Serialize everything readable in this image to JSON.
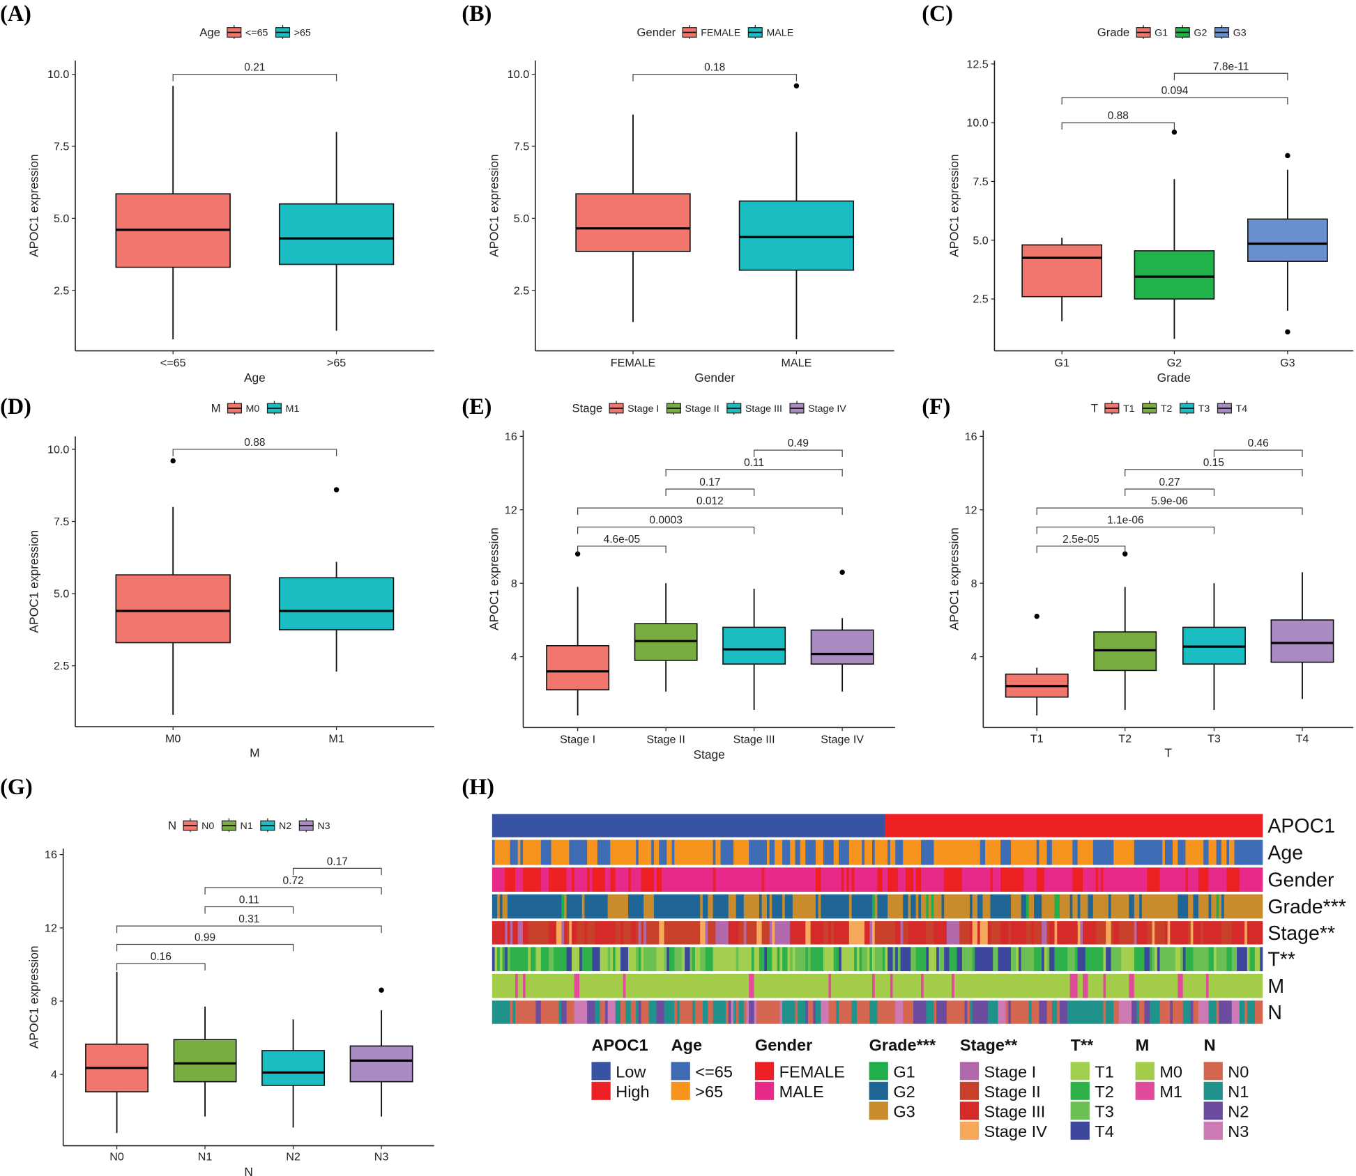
{
  "panel_labels": [
    "(A)",
    "(B)",
    "(C)",
    "(D)",
    "(E)",
    "(F)",
    "(G)",
    "(H)"
  ],
  "chart_data": [
    {
      "type": "boxplot",
      "id": "A",
      "ylabel": "APOC1  expression",
      "xlabel": "Age",
      "legend_title": "Age",
      "yticks": [
        2.5,
        5.0,
        7.5,
        10.0
      ],
      "ytick_labels": [
        "2.5",
        "5.0",
        "7.5",
        "10.0"
      ],
      "groups": [
        {
          "name": "<=65",
          "color": "#f1766e",
          "whisker_low": 0.8,
          "q1": 3.3,
          "median": 4.6,
          "q3": 5.85,
          "whisker_high": 9.6,
          "outliers": []
        },
        {
          "name": ">65",
          "color": "#1cbdc2",
          "whisker_low": 1.1,
          "q1": 3.4,
          "median": 4.3,
          "q3": 5.5,
          "whisker_high": 8.0,
          "outliers": []
        }
      ],
      "comparisons": [
        {
          "from": 0,
          "to": 1,
          "p": "0.21",
          "y": 10.0
        }
      ]
    },
    {
      "type": "boxplot",
      "id": "B",
      "ylabel": "APOC1  expression",
      "xlabel": "Gender",
      "legend_title": "Gender",
      "yticks": [
        2.5,
        5.0,
        7.5,
        10.0
      ],
      "ytick_labels": [
        "2.5",
        "5.0",
        "7.5",
        "10.0"
      ],
      "groups": [
        {
          "name": "FEMALE",
          "color": "#f1766e",
          "whisker_low": 1.4,
          "q1": 3.85,
          "median": 4.65,
          "q3": 5.85,
          "whisker_high": 8.6,
          "outliers": []
        },
        {
          "name": "MALE",
          "color": "#1cbdc2",
          "whisker_low": 0.8,
          "q1": 3.2,
          "median": 4.35,
          "q3": 5.6,
          "whisker_high": 8.0,
          "outliers": [
            9.6
          ]
        }
      ],
      "comparisons": [
        {
          "from": 0,
          "to": 1,
          "p": "0.18",
          "y": 10.0
        }
      ]
    },
    {
      "type": "boxplot",
      "id": "C",
      "ylabel": "APOC1  expression",
      "xlabel": "Grade",
      "legend_title": "Grade",
      "yticks": [
        2.5,
        5.0,
        7.5,
        10.0,
        12.5
      ],
      "ytick_labels": [
        "2.5",
        "5.0",
        "7.5",
        "10.0",
        "12.5"
      ],
      "groups": [
        {
          "name": "G1",
          "color": "#f1766e",
          "whisker_low": 1.55,
          "q1": 2.6,
          "median": 4.25,
          "q3": 4.8,
          "whisker_high": 5.1,
          "outliers": []
        },
        {
          "name": "G2",
          "color": "#22b24c",
          "whisker_low": 0.8,
          "q1": 2.5,
          "median": 3.45,
          "q3": 4.55,
          "whisker_high": 7.6,
          "outliers": [
            9.6
          ]
        },
        {
          "name": "G3",
          "color": "#6a8fcf",
          "whisker_low": 2.0,
          "q1": 4.1,
          "median": 4.85,
          "q3": 5.9,
          "whisker_high": 8.0,
          "outliers": [
            8.6,
            1.1
          ]
        }
      ],
      "comparisons": [
        {
          "from": 0,
          "to": 1,
          "p": "0.88",
          "y": 10.0
        },
        {
          "from": 0,
          "to": 2,
          "p": "0.094",
          "y": 11.07
        },
        {
          "from": 1,
          "to": 2,
          "p": "7.8e-11",
          "y": 12.1
        }
      ]
    },
    {
      "type": "boxplot",
      "id": "D",
      "ylabel": "APOC1  expression",
      "xlabel": "M",
      "legend_title": "M",
      "yticks": [
        2.5,
        5.0,
        7.5,
        10.0
      ],
      "ytick_labels": [
        "2.5",
        "5.0",
        "7.5",
        "10.0"
      ],
      "groups": [
        {
          "name": "M0",
          "color": "#f1766e",
          "whisker_low": 0.8,
          "q1": 3.3,
          "median": 4.4,
          "q3": 5.65,
          "whisker_high": 8.0,
          "outliers": [
            9.6
          ]
        },
        {
          "name": "M1",
          "color": "#1cbdc2",
          "whisker_low": 2.3,
          "q1": 3.75,
          "median": 4.4,
          "q3": 5.55,
          "whisker_high": 6.1,
          "outliers": [
            8.6
          ]
        }
      ],
      "comparisons": [
        {
          "from": 0,
          "to": 1,
          "p": "0.88",
          "y": 10.0
        }
      ]
    },
    {
      "type": "boxplot",
      "id": "E",
      "ylabel": "APOC1  expression",
      "xlabel": "Stage",
      "legend_title": "Stage",
      "yticks": [
        4,
        8,
        12,
        16
      ],
      "ytick_labels": [
        "4",
        "8",
        "12",
        "16"
      ],
      "groups": [
        {
          "name": "Stage I",
          "color": "#f1766e",
          "whisker_low": 0.8,
          "q1": 2.2,
          "median": 3.2,
          "q3": 4.6,
          "whisker_high": 7.8,
          "outliers": [
            9.6
          ]
        },
        {
          "name": "Stage II",
          "color": "#79ad41",
          "whisker_low": 2.1,
          "q1": 3.8,
          "median": 4.85,
          "q3": 5.8,
          "whisker_high": 8.0,
          "outliers": []
        },
        {
          "name": "Stage III",
          "color": "#1cbdc2",
          "whisker_low": 1.1,
          "q1": 3.6,
          "median": 4.4,
          "q3": 5.6,
          "whisker_high": 7.7,
          "outliers": []
        },
        {
          "name": "Stage IV",
          "color": "#a98bc2",
          "whisker_low": 2.1,
          "q1": 3.6,
          "median": 4.15,
          "q3": 5.45,
          "whisker_high": 6.1,
          "outliers": [
            8.6
          ]
        }
      ],
      "comparisons": [
        {
          "from": 0,
          "to": 1,
          "p": "4.6e-05",
          "y": 10.02
        },
        {
          "from": 0,
          "to": 2,
          "p": "0.0003",
          "y": 11.06
        },
        {
          "from": 0,
          "to": 3,
          "p": "0.012",
          "y": 12.1
        },
        {
          "from": 1,
          "to": 2,
          "p": "0.17",
          "y": 13.13
        },
        {
          "from": 1,
          "to": 3,
          "p": "0.11",
          "y": 14.2
        },
        {
          "from": 2,
          "to": 3,
          "p": "0.49",
          "y": 15.25
        }
      ]
    },
    {
      "type": "boxplot",
      "id": "F",
      "ylabel": "APOC1  expression",
      "xlabel": "T",
      "legend_title": "T",
      "yticks": [
        4,
        8,
        12,
        16
      ],
      "ytick_labels": [
        "4",
        "8",
        "12",
        "16"
      ],
      "groups": [
        {
          "name": "T1",
          "color": "#f1766e",
          "whisker_low": 0.8,
          "q1": 1.8,
          "median": 2.4,
          "q3": 3.05,
          "whisker_high": 3.4,
          "outliers": [
            6.2
          ]
        },
        {
          "name": "T2",
          "color": "#79ad41",
          "whisker_low": 1.1,
          "q1": 3.25,
          "median": 4.35,
          "q3": 5.35,
          "whisker_high": 7.8,
          "outliers": [
            9.6
          ]
        },
        {
          "name": "T3",
          "color": "#1cbdc2",
          "whisker_low": 1.1,
          "q1": 3.6,
          "median": 4.55,
          "q3": 5.6,
          "whisker_high": 8.0,
          "outliers": []
        },
        {
          "name": "T4",
          "color": "#a98bc2",
          "whisker_low": 1.7,
          "q1": 3.7,
          "median": 4.75,
          "q3": 6.0,
          "whisker_high": 8.6,
          "outliers": []
        }
      ],
      "comparisons": [
        {
          "from": 0,
          "to": 1,
          "p": "2.5e-05",
          "y": 10.02
        },
        {
          "from": 0,
          "to": 2,
          "p": "1.1e-06",
          "y": 11.06
        },
        {
          "from": 0,
          "to": 3,
          "p": "5.9e-06",
          "y": 12.1
        },
        {
          "from": 1,
          "to": 2,
          "p": "0.27",
          "y": 13.13
        },
        {
          "from": 1,
          "to": 3,
          "p": "0.15",
          "y": 14.2
        },
        {
          "from": 2,
          "to": 3,
          "p": "0.46",
          "y": 15.25
        }
      ]
    },
    {
      "type": "boxplot",
      "id": "G",
      "ylabel": "APOC1  expression",
      "xlabel": "N",
      "legend_title": "N",
      "yticks": [
        4,
        8,
        12,
        16
      ],
      "ytick_labels": [
        "4",
        "8",
        "12",
        "16"
      ],
      "groups": [
        {
          "name": "N0",
          "color": "#f1766e",
          "whisker_low": 0.8,
          "q1": 3.05,
          "median": 4.35,
          "q3": 5.65,
          "whisker_high": 9.6,
          "outliers": []
        },
        {
          "name": "N1",
          "color": "#79ad41",
          "whisker_low": 1.7,
          "q1": 3.6,
          "median": 4.6,
          "q3": 5.9,
          "whisker_high": 7.7,
          "outliers": []
        },
        {
          "name": "N2",
          "color": "#1cbdc2",
          "whisker_low": 1.1,
          "q1": 3.4,
          "median": 4.1,
          "q3": 5.3,
          "whisker_high": 7.0,
          "outliers": []
        },
        {
          "name": "N3",
          "color": "#a98bc2",
          "whisker_low": 1.7,
          "q1": 3.6,
          "median": 4.75,
          "q3": 5.55,
          "whisker_high": 7.5,
          "outliers": [
            8.6
          ]
        }
      ],
      "comparisons": [
        {
          "from": 0,
          "to": 1,
          "p": "0.16",
          "y": 10.05
        },
        {
          "from": 0,
          "to": 2,
          "p": "0.99",
          "y": 11.1
        },
        {
          "from": 0,
          "to": 3,
          "p": "0.31",
          "y": 12.1
        },
        {
          "from": 1,
          "to": 2,
          "p": "0.11",
          "y": 13.15
        },
        {
          "from": 1,
          "to": 3,
          "p": "0.72",
          "y": 14.2
        },
        {
          "from": 2,
          "to": 3,
          "p": "0.17",
          "y": 15.25
        }
      ]
    },
    {
      "type": "heatmap",
      "id": "H",
      "tracks": [
        {
          "label": "APOC1",
          "legend_title": "APOC1",
          "categories": [
            {
              "name": "Low",
              "color": "#3953a4"
            },
            {
              "name": "High",
              "color": "#ed2024"
            }
          ]
        },
        {
          "label": "Age",
          "legend_title": "Age",
          "categories": [
            {
              "name": "<=65",
              "color": "#3f6db5"
            },
            {
              "name": ">65",
              "color": "#f7941d"
            }
          ]
        },
        {
          "label": "Gender",
          "legend_title": "Gender",
          "categories": [
            {
              "name": "FEMALE",
              "color": "#ed2024"
            },
            {
              "name": "MALE",
              "color": "#e7298a"
            }
          ]
        },
        {
          "label": "Grade***",
          "legend_title": "Grade***",
          "categories": [
            {
              "name": "G1",
              "color": "#1fb04b"
            },
            {
              "name": "G2",
              "color": "#1f6596"
            },
            {
              "name": "G3",
              "color": "#c98b2b"
            }
          ]
        },
        {
          "label": "Stage**",
          "legend_title": "Stage**",
          "categories": [
            {
              "name": "Stage I",
              "color": "#b169ac"
            },
            {
              "name": "Stage II",
              "color": "#c9402a"
            },
            {
              "name": "Stage III",
              "color": "#d42a2a"
            },
            {
              "name": "Stage IV",
              "color": "#f6a95b"
            }
          ]
        },
        {
          "label": "T**",
          "legend_title": "T**",
          "categories": [
            {
              "name": "T1",
              "color": "#a3cf4f"
            },
            {
              "name": "T2",
              "color": "#2eb04a"
            },
            {
              "name": "T3",
              "color": "#6cbf52"
            },
            {
              "name": "T4",
              "color": "#3c479c"
            }
          ]
        },
        {
          "label": "M",
          "legend_title": "M",
          "categories": [
            {
              "name": "M0",
              "color": "#a3cc49"
            },
            {
              "name": "M1",
              "color": "#e04b9b"
            }
          ]
        },
        {
          "label": "N",
          "legend_title": "N",
          "categories": [
            {
              "name": "N0",
              "color": "#d5664f"
            },
            {
              "name": "N1",
              "color": "#1e928b"
            },
            {
              "name": "N2",
              "color": "#6b4c9f"
            },
            {
              "name": "N3",
              "color": "#cc79b4"
            }
          ]
        }
      ]
    }
  ]
}
